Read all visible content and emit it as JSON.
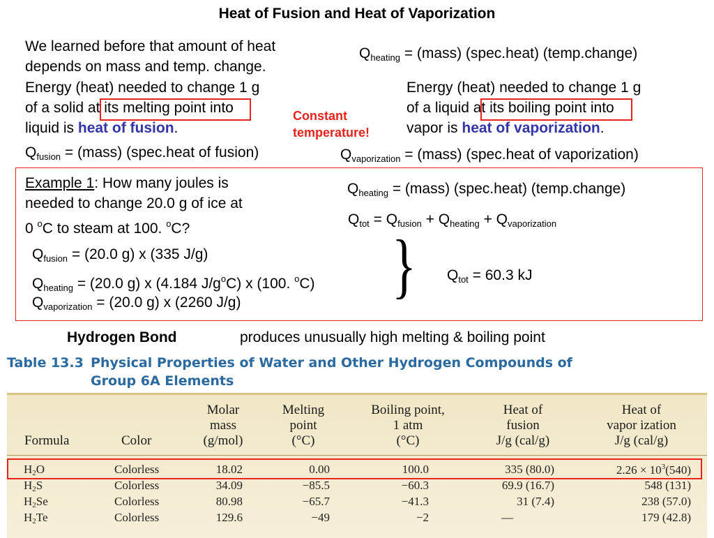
{
  "title": "Heat of Fusion and Heat of Vaporization",
  "intro": {
    "line1": "We learned before that amount of heat",
    "line2": "depends on mass and temp. change."
  },
  "q_heating_top": {
    "q": "Q",
    "sub": "heating",
    "rest": " = (mass) (spec.heat) (temp.change)"
  },
  "fusion": {
    "line1": "Energy (heat) needed to change 1 g",
    "line2a": "of a solid ",
    "line2b": "at its melting point",
    "line2c": " into",
    "line3a": "liquid is ",
    "line3b": "heat of fusion",
    "line3c": ".",
    "formula_q": "Q",
    "formula_sub": "fusion",
    "formula_rest": " = (mass) (spec.heat of fusion)"
  },
  "constant": {
    "line1": "Constant",
    "line2": "temperature!"
  },
  "vaporization": {
    "line1": "Energy (heat) needed to change 1 g",
    "line2a": "of a liquid ",
    "line2b": "at its boiling point",
    "line2c": " into",
    "line3a": "vapor is ",
    "line3b": "heat of vaporization",
    "line3c": ".",
    "formula_q": "Q",
    "formula_sub": "vaporization",
    "formula_rest": " = (mass) (spec.heat of vaporization)"
  },
  "example": {
    "label": "Example 1",
    "text1": ": How many joules is",
    "text2": "needed to change 20.0 g of ice at",
    "text3a": "0 ",
    "text3sup1": "o",
    "text3b": "C to steam at 100. ",
    "text3sup2": "o",
    "text3c": "C?",
    "qheat_q": "Q",
    "qheat_sub": "heating",
    "qheat_rest": " = (mass) (spec.heat) (temp.change)",
    "qtot_q": "Q",
    "qtot_sub": "tot",
    "qtot_mid1": " = Q",
    "qtot_sub1": "fusion",
    "qtot_mid2": " + Q",
    "qtot_sub2": "heating",
    "qtot_mid3": " + Q",
    "qtot_sub3": "vaporization",
    "calc1_q": "Q",
    "calc1_sub": "fusion",
    "calc1_rest": " = (20.0 g) x (335 J/g)",
    "calc2_q": "Q",
    "calc2_sub": "heating",
    "calc2_rest_a": " = (20.0 g) x (4.184 J/g",
    "calc2_sup1": "o",
    "calc2_rest_b": "C) x (100. ",
    "calc2_sup2": "o",
    "calc2_rest_c": "C)",
    "calc3_q": "Q",
    "calc3_sub": "vaporization",
    "calc3_rest": " = (20.0 g) x (2260 J/g)",
    "brace": "}",
    "result_q": "Q",
    "result_sub": "tot",
    "result_rest": " = 60.3 kJ"
  },
  "hbond": {
    "label": "Hydrogen Bond",
    "text": "produces unusually high melting & boiling point"
  },
  "table": {
    "title_label": "Table 13.3",
    "title_line1": "Physical Properties of Water and Other Hydrogen Compounds of",
    "title_line2": "Group 6A Elements",
    "headers": {
      "formula": "Formula",
      "color": "Color",
      "molar_mass": [
        "Molar",
        "mass",
        "(g/mol)"
      ],
      "melting": [
        "Melting",
        "point",
        "(°C)"
      ],
      "boiling": [
        "Boiling point,",
        "1 atm",
        "(°C)"
      ],
      "fusion": [
        "Heat of",
        "fusion",
        "J/g (cal/g)"
      ],
      "vaporization": [
        "Heat of",
        "vapor ization",
        "J/g (cal/g)"
      ]
    },
    "rows": [
      {
        "f": "H",
        "fsub": "2",
        "fel": "O",
        "color": "Colorless",
        "mass": "18.02",
        "mp": "0.00",
        "bp": "100.0",
        "fus": "335 (80.0)",
        "vap_a": "2.26 × 10",
        "vap_sup": "3",
        "vap_b": "(540)"
      },
      {
        "f": "H",
        "fsub": "2",
        "fel": "S",
        "color": "Colorless",
        "mass": "34.09",
        "mp": "−85.5",
        "bp": "−60.3",
        "fus": "69.9 (16.7)",
        "vap_a": "548 (131)",
        "vap_sup": "",
        "vap_b": ""
      },
      {
        "f": "H",
        "fsub": "2",
        "fel": "Se",
        "color": "Colorless",
        "mass": "80.98",
        "mp": "−65.7",
        "bp": "−41.3",
        "fus": "31 (7.4)",
        "vap_a": "238 (57.0)",
        "vap_sup": "",
        "vap_b": ""
      },
      {
        "f": "H",
        "fsub": "2",
        "fel": "Te",
        "color": "Colorless",
        "mass": "129.6",
        "mp": "−49",
        "bp": "−2",
        "fus": "—",
        "vap_a": "179 (42.8)",
        "vap_sup": "",
        "vap_b": ""
      }
    ]
  },
  "colors": {
    "accent_red": "#e8231d",
    "term_blue": "#3333aa",
    "table_title": "#2a6aa0"
  }
}
